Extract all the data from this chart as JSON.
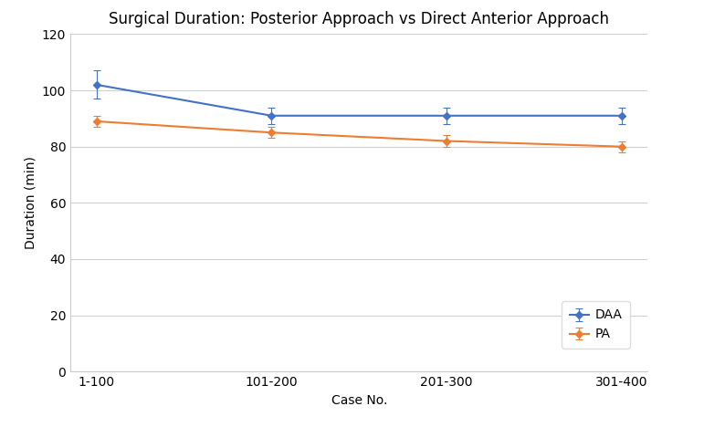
{
  "title": "Surgical Duration: Posterior Approach vs Direct Anterior Approach",
  "xlabel": "Case No.",
  "ylabel": "Duration (min)",
  "categories": [
    "1-100",
    "101-200",
    "201-300",
    "301-400"
  ],
  "daa_values": [
    102,
    91,
    91,
    91
  ],
  "pa_values": [
    89,
    85,
    82,
    80
  ],
  "daa_errors": [
    5,
    3,
    3,
    3
  ],
  "pa_errors": [
    2,
    2,
    2,
    2
  ],
  "daa_color": "#4472C4",
  "pa_color": "#ED7D31",
  "ylim": [
    0,
    120
  ],
  "yticks": [
    0,
    20,
    40,
    60,
    80,
    100,
    120
  ],
  "background_color": "#FFFFFF",
  "grid_color": "#D0D0D0",
  "legend_labels": [
    "DAA",
    "PA"
  ],
  "title_fontsize": 12,
  "label_fontsize": 10,
  "tick_fontsize": 10
}
